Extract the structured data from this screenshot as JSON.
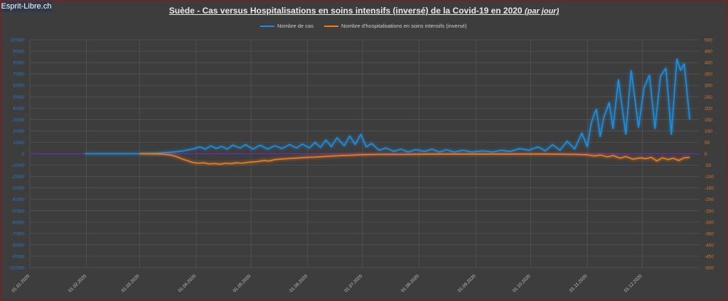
{
  "logo": {
    "text": "Esprit-Libre.ch"
  },
  "title": {
    "main": "Suède - Cas versus Hospitalisations en soins intensifs (inversé) de la Covid-19 en 2020",
    "sub": "(par jour)"
  },
  "colors": {
    "cases": "#1f8fe0",
    "icu": "#f07d1f",
    "zero_line": "#6a2fb0",
    "grid": "#575757",
    "axis_left": "#2a7bd0",
    "axis_right": "#e0762a"
  },
  "chart_data": {
    "type": "line",
    "title": "Suède - Cas versus Hospitalisations en soins intensifs (inversé) de la Covid-19 en 2020 (par jour)",
    "xlabel": "",
    "x_tick_labels": [
      "01.01.2020",
      "01.02.2020",
      "01.03.2020",
      "01.04.2020",
      "01.05.2020",
      "01.06.2020",
      "01.07.2020",
      "01.08.2020",
      "01.09.2020",
      "01.10.2020",
      "01.11.2020",
      "01.12.2020"
    ],
    "y_left": {
      "label": "",
      "range": [
        -10000,
        10000
      ],
      "ticks": [
        "10'000",
        "9'000",
        "8'000",
        "7'000",
        "6'000",
        "5'000",
        "4'000",
        "3'000",
        "2'000",
        "1'000",
        "0",
        "-1'000",
        "-2'000",
        "-3'000",
        "-4'000",
        "-5'000",
        "-6'000",
        "-7'000",
        "-8'000",
        "-9'000",
        "-10'000"
      ]
    },
    "y_right": {
      "label": "",
      "range": [
        -500,
        500
      ],
      "ticks": [
        "500",
        "450",
        "400",
        "350",
        "300",
        "250",
        "200",
        "150",
        "100",
        "50",
        "0",
        "-50",
        "-100",
        "-150",
        "-200",
        "-250",
        "-300",
        "-350",
        "-400",
        "-450",
        "-500"
      ]
    },
    "grid": true,
    "legend_position": "top",
    "series": [
      {
        "name": "Nombre de cas",
        "axis": "left",
        "points": [
          [
            "2020-01-31",
            0
          ],
          [
            "2020-02-15",
            0
          ],
          [
            "2020-03-01",
            0
          ],
          [
            "2020-03-10",
            30
          ],
          [
            "2020-03-15",
            100
          ],
          [
            "2020-03-20",
            150
          ],
          [
            "2020-03-25",
            250
          ],
          [
            "2020-03-28",
            350
          ],
          [
            "2020-03-31",
            450
          ],
          [
            "2020-04-03",
            600
          ],
          [
            "2020-04-06",
            400
          ],
          [
            "2020-04-09",
            700
          ],
          [
            "2020-04-12",
            450
          ],
          [
            "2020-04-15",
            650
          ],
          [
            "2020-04-18",
            400
          ],
          [
            "2020-04-21",
            750
          ],
          [
            "2020-04-25",
            500
          ],
          [
            "2020-04-28",
            800
          ],
          [
            "2020-05-02",
            400
          ],
          [
            "2020-05-06",
            750
          ],
          [
            "2020-05-10",
            400
          ],
          [
            "2020-05-14",
            700
          ],
          [
            "2020-05-18",
            450
          ],
          [
            "2020-05-22",
            800
          ],
          [
            "2020-05-26",
            500
          ],
          [
            "2020-05-29",
            850
          ],
          [
            "2020-06-02",
            500
          ],
          [
            "2020-06-05",
            1000
          ],
          [
            "2020-06-08",
            550
          ],
          [
            "2020-06-11",
            1200
          ],
          [
            "2020-06-14",
            600
          ],
          [
            "2020-06-17",
            1400
          ],
          [
            "2020-06-21",
            700
          ],
          [
            "2020-06-24",
            1550
          ],
          [
            "2020-06-27",
            800
          ],
          [
            "2020-06-30",
            1700
          ],
          [
            "2020-07-03",
            600
          ],
          [
            "2020-07-06",
            900
          ],
          [
            "2020-07-10",
            300
          ],
          [
            "2020-07-14",
            500
          ],
          [
            "2020-07-18",
            200
          ],
          [
            "2020-07-22",
            400
          ],
          [
            "2020-07-26",
            150
          ],
          [
            "2020-07-30",
            350
          ],
          [
            "2020-08-04",
            200
          ],
          [
            "2020-08-08",
            400
          ],
          [
            "2020-08-12",
            150
          ],
          [
            "2020-08-16",
            350
          ],
          [
            "2020-08-20",
            150
          ],
          [
            "2020-08-25",
            300
          ],
          [
            "2020-08-30",
            150
          ],
          [
            "2020-09-05",
            250
          ],
          [
            "2020-09-10",
            150
          ],
          [
            "2020-09-15",
            300
          ],
          [
            "2020-09-20",
            200
          ],
          [
            "2020-09-25",
            450
          ],
          [
            "2020-09-30",
            300
          ],
          [
            "2020-10-05",
            600
          ],
          [
            "2020-10-09",
            250
          ],
          [
            "2020-10-13",
            800
          ],
          [
            "2020-10-17",
            300
          ],
          [
            "2020-10-21",
            1100
          ],
          [
            "2020-10-25",
            400
          ],
          [
            "2020-10-29",
            1800
          ],
          [
            "2020-11-01",
            600
          ],
          [
            "2020-11-03",
            2600
          ],
          [
            "2020-11-05",
            3600
          ],
          [
            "2020-11-06",
            3900
          ],
          [
            "2020-11-08",
            1500
          ],
          [
            "2020-11-10",
            3200
          ],
          [
            "2020-11-13",
            4500
          ],
          [
            "2020-11-15",
            2200
          ],
          [
            "2020-11-18",
            6500
          ],
          [
            "2020-11-22",
            1700
          ],
          [
            "2020-11-25",
            7300
          ],
          [
            "2020-11-29",
            2300
          ],
          [
            "2020-12-02",
            5800
          ],
          [
            "2020-12-05",
            6900
          ],
          [
            "2020-12-08",
            2200
          ],
          [
            "2020-12-11",
            6800
          ],
          [
            "2020-12-14",
            7500
          ],
          [
            "2020-12-17",
            1700
          ],
          [
            "2020-12-20",
            8300
          ],
          [
            "2020-12-22",
            7300
          ],
          [
            "2020-12-24",
            7900
          ],
          [
            "2020-12-27",
            3000
          ]
        ]
      },
      {
        "name": "Nombre d'hospitalisations en soins intensifs (inversé)",
        "axis": "right",
        "points": [
          [
            "2020-03-01",
            0
          ],
          [
            "2020-03-10",
            -1
          ],
          [
            "2020-03-15",
            -3
          ],
          [
            "2020-03-18",
            -6
          ],
          [
            "2020-03-21",
            -12
          ],
          [
            "2020-03-24",
            -22
          ],
          [
            "2020-03-27",
            -30
          ],
          [
            "2020-03-30",
            -38
          ],
          [
            "2020-04-02",
            -42
          ],
          [
            "2020-04-05",
            -40
          ],
          [
            "2020-04-08",
            -45
          ],
          [
            "2020-04-11",
            -43
          ],
          [
            "2020-04-14",
            -46
          ],
          [
            "2020-04-17",
            -42
          ],
          [
            "2020-04-20",
            -44
          ],
          [
            "2020-04-23",
            -40
          ],
          [
            "2020-04-26",
            -42
          ],
          [
            "2020-04-29",
            -38
          ],
          [
            "2020-05-02",
            -36
          ],
          [
            "2020-05-05",
            -34
          ],
          [
            "2020-05-08",
            -30
          ],
          [
            "2020-05-11",
            -32
          ],
          [
            "2020-05-14",
            -26
          ],
          [
            "2020-05-17",
            -24
          ],
          [
            "2020-05-20",
            -22
          ],
          [
            "2020-05-24",
            -20
          ],
          [
            "2020-05-28",
            -18
          ],
          [
            "2020-06-01",
            -16
          ],
          [
            "2020-06-05",
            -15
          ],
          [
            "2020-06-10",
            -12
          ],
          [
            "2020-06-15",
            -10
          ],
          [
            "2020-06-20",
            -8
          ],
          [
            "2020-06-25",
            -7
          ],
          [
            "2020-06-30",
            -5
          ],
          [
            "2020-07-10",
            -3
          ],
          [
            "2020-07-25",
            -3
          ],
          [
            "2020-08-10",
            -2
          ],
          [
            "2020-08-25",
            -2
          ],
          [
            "2020-09-10",
            -2
          ],
          [
            "2020-09-25",
            -2
          ],
          [
            "2020-10-10",
            -2
          ],
          [
            "2020-10-25",
            -3
          ],
          [
            "2020-11-01",
            -5
          ],
          [
            "2020-11-05",
            -10
          ],
          [
            "2020-11-08",
            -6
          ],
          [
            "2020-11-12",
            -14
          ],
          [
            "2020-11-15",
            -8
          ],
          [
            "2020-11-19",
            -20
          ],
          [
            "2020-11-22",
            -12
          ],
          [
            "2020-11-26",
            -24
          ],
          [
            "2020-11-30",
            -18
          ],
          [
            "2020-12-03",
            -22
          ],
          [
            "2020-12-06",
            -16
          ],
          [
            "2020-12-09",
            -32
          ],
          [
            "2020-12-12",
            -18
          ],
          [
            "2020-12-15",
            -26
          ],
          [
            "2020-12-18",
            -20
          ],
          [
            "2020-12-21",
            -30
          ],
          [
            "2020-12-24",
            -18
          ],
          [
            "2020-12-27",
            -16
          ]
        ]
      }
    ]
  }
}
